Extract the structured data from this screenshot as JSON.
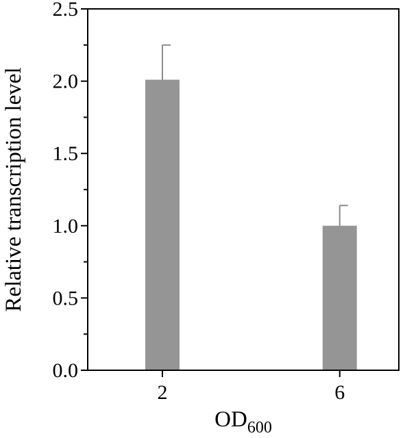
{
  "chart_data": {
    "type": "bar",
    "categories": [
      "2",
      "6"
    ],
    "series": [
      {
        "values": [
          2.01,
          1.0
        ],
        "errors": [
          0.24,
          0.14
        ]
      }
    ],
    "xlabel": {
      "main": "OD",
      "subscript": "600"
    },
    "ylabel": "Relative transcription level",
    "ylim": [
      0,
      2.5
    ],
    "yticks": [
      "0.0",
      "0.5",
      "1.0",
      "1.5",
      "2.0",
      "2.5"
    ],
    "bar_color": "#959595",
    "grid": false
  }
}
